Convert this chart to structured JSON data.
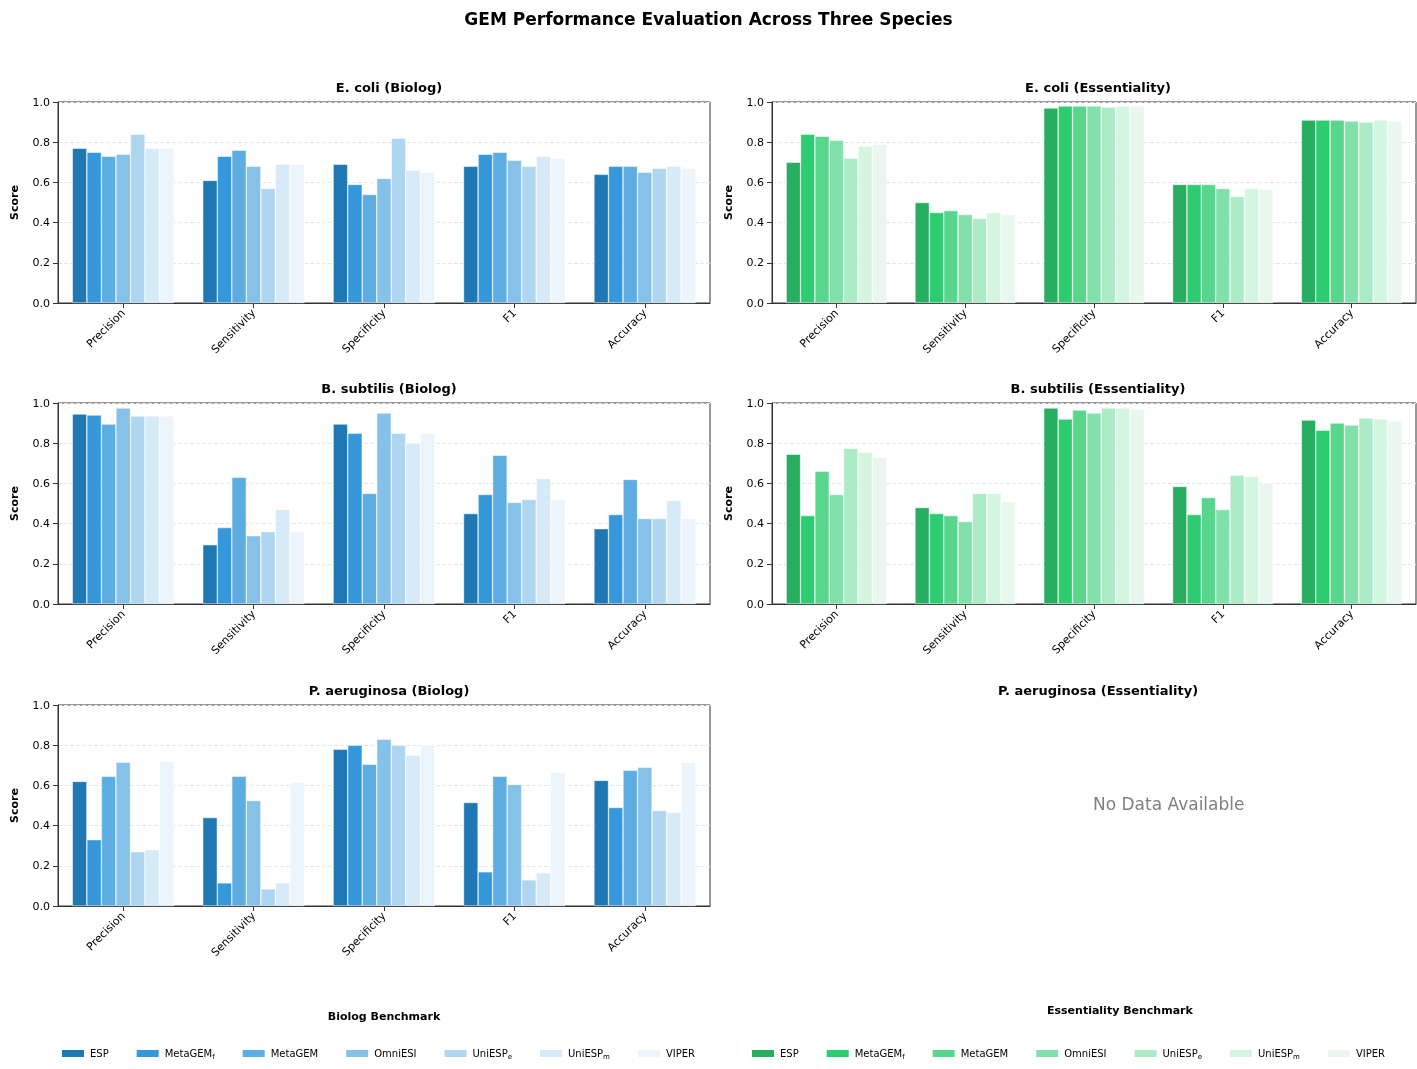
{
  "chart_data": [
    {
      "type": "bar",
      "title": "E. coli (Biolog)",
      "ylabel": "Score",
      "annotations": [
        "GEM Performance Evaluation Across Three Species"
      ],
      "categories": [
        "Precision",
        "Sensitivity",
        "Specificity",
        "F1",
        "Accuracy"
      ],
      "ylim": [
        0,
        1
      ],
      "yticks": [
        {
          "value": 0,
          "label": "0.0"
        },
        {
          "value": 0.2,
          "label": "0.2"
        },
        {
          "value": 0.4,
          "label": "0.4"
        },
        {
          "value": 0.6,
          "label": "0.6"
        },
        {
          "value": 0.8,
          "label": "0.8"
        },
        {
          "value": 1,
          "label": "1.0"
        }
      ],
      "grid": "y",
      "legend": false,
      "series": [
        {
          "color": "#1f77b4",
          "values": [
            0.77,
            0.61,
            0.69,
            0.68,
            0.64
          ]
        },
        {
          "color": "#3498db",
          "values": [
            0.75,
            0.73,
            0.59,
            0.74,
            0.68
          ]
        },
        {
          "color": "#5dade2",
          "values": [
            0.73,
            0.76,
            0.54,
            0.75,
            0.68
          ]
        },
        {
          "color": "#85c1e9",
          "values": [
            0.74,
            0.68,
            0.62,
            0.71,
            0.65
          ]
        },
        {
          "color": "#aed6f1",
          "values": [
            0.84,
            0.57,
            0.82,
            0.68,
            0.67
          ]
        },
        {
          "color": "#d6eaf8",
          "values": [
            0.77,
            0.69,
            0.66,
            0.73,
            0.68
          ]
        },
        {
          "color": "#ebf5fb",
          "values": [
            0.77,
            0.69,
            0.65,
            0.72,
            0.67
          ]
        }
      ]
    },
    {
      "type": "bar",
      "title": "E. coli (Essentiality)",
      "ylabel": "Score",
      "categories": [
        "Precision",
        "Sensitivity",
        "Specificity",
        "F1",
        "Accuracy"
      ],
      "ylim": [
        0,
        1
      ],
      "yticks": [
        {
          "value": 0,
          "label": "0.0"
        },
        {
          "value": 0.2,
          "label": "0.2"
        },
        {
          "value": 0.4,
          "label": "0.4"
        },
        {
          "value": 0.6,
          "label": "0.6"
        },
        {
          "value": 0.8,
          "label": "0.8"
        },
        {
          "value": 1,
          "label": "1.0"
        }
      ],
      "grid": "y",
      "legend": false,
      "series": [
        {
          "color": "#27ae60",
          "values": [
            0.7,
            0.5,
            0.97,
            0.59,
            0.91
          ]
        },
        {
          "color": "#2ecc71",
          "values": [
            0.84,
            0.45,
            0.98,
            0.59,
            0.91
          ]
        },
        {
          "color": "#58d68d",
          "values": [
            0.83,
            0.46,
            0.98,
            0.59,
            0.91
          ]
        },
        {
          "color": "#82e0aa",
          "values": [
            0.81,
            0.44,
            0.98,
            0.57,
            0.905
          ]
        },
        {
          "color": "#abebc6",
          "values": [
            0.72,
            0.42,
            0.975,
            0.53,
            0.9
          ]
        },
        {
          "color": "#d5f5e3",
          "values": [
            0.78,
            0.45,
            0.98,
            0.57,
            0.91
          ]
        },
        {
          "color": "#e9f7ef",
          "values": [
            0.79,
            0.44,
            0.98,
            0.565,
            0.905
          ]
        }
      ]
    },
    {
      "type": "bar",
      "title": "B. subtilis (Biolog)",
      "ylabel": "Score",
      "categories": [
        "Precision",
        "Sensitivity",
        "Specificity",
        "F1",
        "Accuracy"
      ],
      "ylim": [
        0,
        1
      ],
      "yticks": [
        {
          "value": 0,
          "label": "0.0"
        },
        {
          "value": 0.2,
          "label": "0.2"
        },
        {
          "value": 0.4,
          "label": "0.4"
        },
        {
          "value": 0.6,
          "label": "0.6"
        },
        {
          "value": 0.8,
          "label": "0.8"
        },
        {
          "value": 1,
          "label": "1.0"
        }
      ],
      "grid": "y",
      "legend": false,
      "series": [
        {
          "color": "#1f77b4",
          "values": [
            0.945,
            0.295,
            0.895,
            0.45,
            0.375
          ]
        },
        {
          "color": "#3498db",
          "values": [
            0.94,
            0.38,
            0.85,
            0.545,
            0.445
          ]
        },
        {
          "color": "#5dade2",
          "values": [
            0.895,
            0.63,
            0.55,
            0.74,
            0.62
          ]
        },
        {
          "color": "#85c1e9",
          "values": [
            0.975,
            0.34,
            0.95,
            0.505,
            0.425
          ]
        },
        {
          "color": "#aed6f1",
          "values": [
            0.935,
            0.36,
            0.85,
            0.52,
            0.425
          ]
        },
        {
          "color": "#d6eaf8",
          "values": [
            0.935,
            0.47,
            0.8,
            0.625,
            0.515
          ]
        },
        {
          "color": "#ebf5fb",
          "values": [
            0.935,
            0.36,
            0.85,
            0.52,
            0.425
          ]
        }
      ]
    },
    {
      "type": "bar",
      "title": "B. subtilis (Essentiality)",
      "ylabel": "Score",
      "categories": [
        "Precision",
        "Sensitivity",
        "Specificity",
        "F1",
        "Accuracy"
      ],
      "ylim": [
        0,
        1
      ],
      "yticks": [
        {
          "value": 0,
          "label": "0.0"
        },
        {
          "value": 0.2,
          "label": "0.2"
        },
        {
          "value": 0.4,
          "label": "0.4"
        },
        {
          "value": 0.6,
          "label": "0.6"
        },
        {
          "value": 0.8,
          "label": "0.8"
        },
        {
          "value": 1,
          "label": "1.0"
        }
      ],
      "grid": "y",
      "legend": "bottom",
      "series": [
        {
          "name": "ESP",
          "color": "#27ae60",
          "values": [
            0.745,
            0.48,
            0.975,
            0.585,
            0.915
          ]
        },
        {
          "name": "MetaGEM$_{f}$",
          "color": "#2ecc71",
          "values": [
            0.44,
            0.45,
            0.92,
            0.445,
            0.865
          ]
        },
        {
          "name": "MetaGEM",
          "color": "#58d68d",
          "values": [
            0.66,
            0.44,
            0.965,
            0.53,
            0.9
          ]
        },
        {
          "name": "OmniESI",
          "color": "#82e0aa",
          "values": [
            0.545,
            0.41,
            0.95,
            0.47,
            0.89
          ]
        },
        {
          "name": "UniESP$_{e}$",
          "color": "#abebc6",
          "values": [
            0.775,
            0.55,
            0.975,
            0.64,
            0.925
          ]
        },
        {
          "name": "UniESP$_{m}$",
          "color": "#d5f5e3",
          "values": [
            0.755,
            0.55,
            0.975,
            0.635,
            0.92
          ]
        },
        {
          "name": "VIPER",
          "color": "#e9f7ef",
          "values": [
            0.73,
            0.51,
            0.97,
            0.6,
            0.91
          ]
        }
      ]
    },
    {
      "type": "bar",
      "title": "P. aeruginosa (Biolog)",
      "ylabel": "Score",
      "xlabel": "Biolog Benchmark",
      "categories": [
        "Precision",
        "Sensitivity",
        "Specificity",
        "F1",
        "Accuracy"
      ],
      "ylim": [
        0,
        1
      ],
      "yticks": [
        {
          "value": 0,
          "label": "0.0"
        },
        {
          "value": 0.2,
          "label": "0.2"
        },
        {
          "value": 0.4,
          "label": "0.4"
        },
        {
          "value": 0.6,
          "label": "0.6"
        },
        {
          "value": 0.8,
          "label": "0.8"
        },
        {
          "value": 1,
          "label": "1.0"
        }
      ],
      "grid": "y",
      "legend": "bottom",
      "series": [
        {
          "name": "ESP",
          "color": "#1f77b4",
          "values": [
            0.62,
            0.44,
            0.78,
            0.515,
            0.625
          ]
        },
        {
          "name": "MetaGEM$_{f}$",
          "color": "#3498db",
          "values": [
            0.33,
            0.115,
            0.8,
            0.17,
            0.49
          ]
        },
        {
          "name": "MetaGEM",
          "color": "#5dade2",
          "values": [
            0.645,
            0.645,
            0.705,
            0.645,
            0.675
          ]
        },
        {
          "name": "OmniESI",
          "color": "#85c1e9",
          "values": [
            0.715,
            0.525,
            0.83,
            0.605,
            0.69
          ]
        },
        {
          "name": "UniESP$_{e}$",
          "color": "#aed6f1",
          "values": [
            0.27,
            0.085,
            0.8,
            0.13,
            0.475
          ]
        },
        {
          "name": "UniESP$_{m}$",
          "color": "#d6eaf8",
          "values": [
            0.28,
            0.115,
            0.75,
            0.165,
            0.465
          ]
        },
        {
          "name": "VIPER",
          "color": "#ebf5fb",
          "values": [
            0.72,
            0.615,
            0.8,
            0.665,
            0.715
          ]
        }
      ]
    },
    {
      "type": "other",
      "title": "P. aeruginosa (Essentiality)",
      "xlabel": "Essentiality Benchmark",
      "annotations": [
        "No Data Available"
      ]
    }
  ]
}
